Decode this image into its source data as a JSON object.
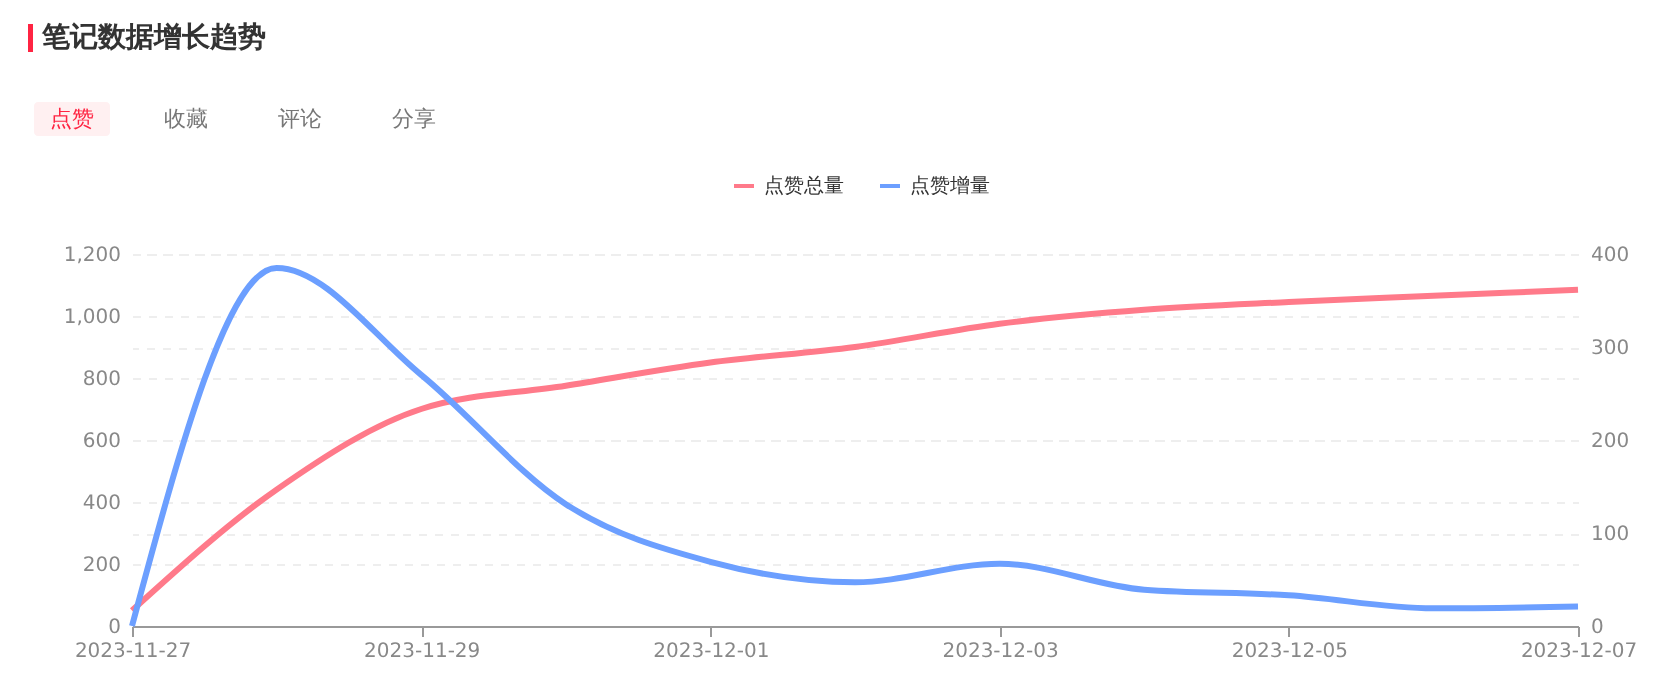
{
  "chart_data": {
    "type": "line",
    "title": "笔记数据增长趋势",
    "annotations": [
      "点赞",
      "收藏",
      "评论",
      "分享"
    ],
    "x": [
      "2023-11-27",
      "2023-11-28",
      "2023-11-29",
      "2023-11-30",
      "2023-12-01",
      "2023-12-02",
      "2023-12-03",
      "2023-12-04",
      "2023-12-05",
      "2023-12-06",
      "2023-12-07"
    ],
    "series": [
      {
        "name": "点赞总量",
        "color": "#ff7a8a",
        "values": [
          50,
          440,
          700,
          775,
          850,
          900,
          975,
          1020,
          1045,
          1065,
          1085
        ]
      },
      {
        "name": "点赞增量",
        "color": "#6c9fff",
        "axis": "y2",
        "values": [
          0,
          385,
          270,
          131,
          69,
          47,
          67,
          39,
          33,
          19,
          21
        ]
      }
    ],
    "xlim": [
      "2023-11-27",
      "2023-12-07"
    ],
    "xticks": [
      "2023-11-27",
      "2023-11-29",
      "2023-12-01",
      "2023-12-03",
      "2023-12-05",
      "2023-12-07"
    ],
    "ylim": [
      0,
      1200
    ],
    "yticks": [
      0,
      200,
      400,
      600,
      800,
      {
        "value": 1000,
        "label": "1,000"
      },
      {
        "value": 1200,
        "label": "1,200"
      }
    ],
    "y2lim": [
      0,
      400
    ],
    "y2ticks": [
      0,
      100,
      200,
      300,
      400
    ],
    "grid": "y",
    "legend": "top",
    "marker": "none",
    "line_style": "solid"
  }
}
